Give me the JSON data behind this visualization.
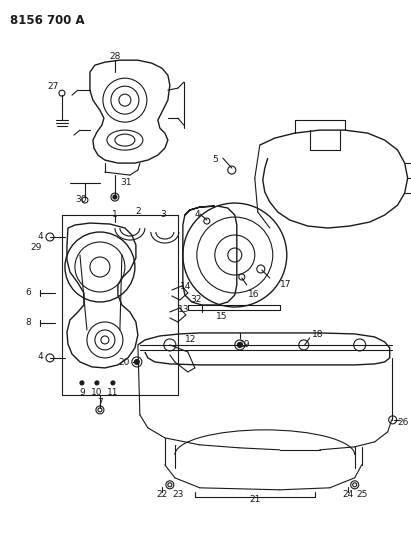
{
  "title": "8156 700 A",
  "bg_color": "#ffffff",
  "line_color": "#1a1a1a",
  "title_fontsize": 8.5,
  "label_fontsize": 6.5,
  "figsize": [
    4.11,
    5.33
  ],
  "dpi": 100
}
